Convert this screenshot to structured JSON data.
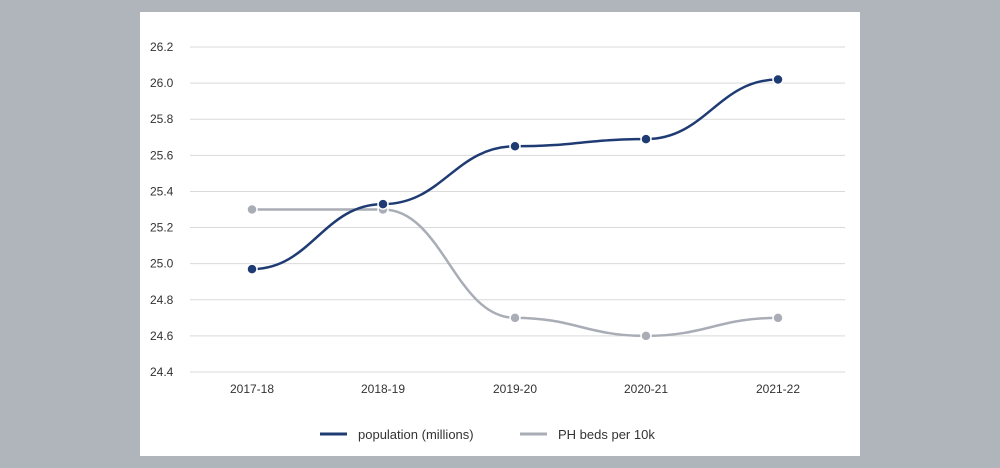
{
  "chart_data": {
    "type": "line",
    "title": "",
    "xlabel": "",
    "ylabel": "",
    "categories": [
      "2017-18",
      "2018-19",
      "2019-20",
      "2020-21",
      "2021-22"
    ],
    "ylim": [
      24.4,
      26.2
    ],
    "yticks": [
      "26.2",
      "26.0",
      "25.8",
      "25.6",
      "25.4",
      "25.2",
      "25.0",
      "24.8",
      "24.6",
      "24.4"
    ],
    "grid": true,
    "legend_position": "bottom",
    "series": [
      {
        "name": "population (millions)",
        "color": "#1f3b73",
        "values": [
          24.97,
          25.33,
          25.65,
          25.69,
          26.02
        ]
      },
      {
        "name": "PH beds per 10k",
        "color": "#a9adb6",
        "values": [
          25.3,
          25.3,
          24.7,
          24.6,
          24.7
        ]
      }
    ]
  }
}
